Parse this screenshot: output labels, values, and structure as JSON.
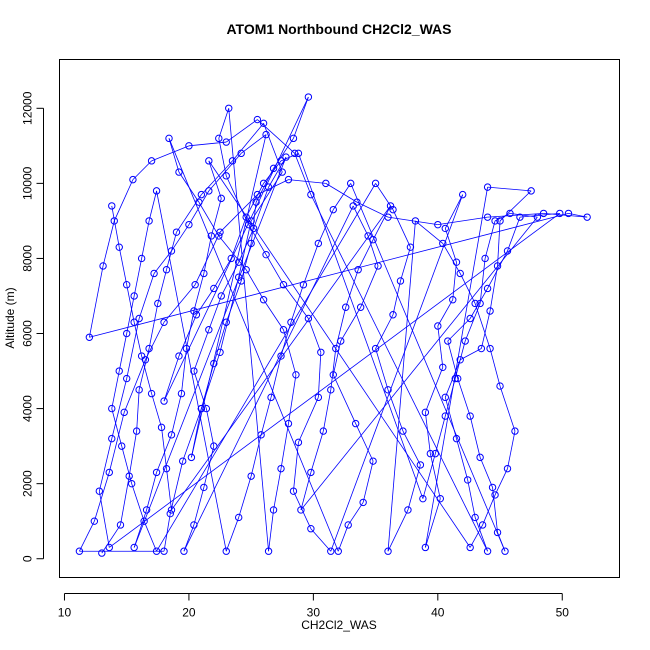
{
  "chart_data": {
    "type": "scatter",
    "title": "ATOM1 Northbound CH2Cl2_WAS",
    "xlabel": "CH2Cl2_WAS",
    "ylabel": "Altitude (m)",
    "xlim": [
      9.6,
      54.6
    ],
    "ylim": [
      -500,
      13300
    ],
    "xticks": [
      10,
      20,
      30,
      40,
      50
    ],
    "yticks": [
      0,
      2000,
      4000,
      6000,
      8000,
      10000,
      12000
    ],
    "color": "#0000ff",
    "marker": "open-circle",
    "connected": true,
    "grid": false,
    "legend": "none",
    "series": [
      {
        "points": [
          [
            13.0,
            150
          ],
          [
            14.5,
            900
          ],
          [
            15.2,
            2200
          ],
          [
            15.8,
            3400
          ],
          [
            16.0,
            4500
          ],
          [
            16.8,
            5600
          ],
          [
            17.5,
            6800
          ],
          [
            18.2,
            7700
          ],
          [
            19.0,
            8700
          ],
          [
            21.0,
            9700
          ],
          [
            23.5,
            10600
          ],
          [
            26.0,
            11600
          ],
          [
            27.5,
            10300
          ],
          [
            25.0,
            9000
          ],
          [
            24.0,
            7500
          ],
          [
            22.5,
            5500
          ],
          [
            21.0,
            4000
          ],
          [
            19.5,
            2600
          ],
          [
            18.5,
            1200
          ],
          [
            18.0,
            200
          ],
          [
            11.2,
            200
          ],
          [
            12.4,
            1000
          ],
          [
            13.6,
            2300
          ],
          [
            14.8,
            3900
          ],
          [
            16.5,
            5300
          ],
          [
            18.0,
            6300
          ],
          [
            20.5,
            7300
          ],
          [
            22.5,
            8700
          ],
          [
            25.5,
            9700
          ],
          [
            28.0,
            10100
          ],
          [
            31.0,
            10000
          ],
          [
            33.5,
            9500
          ],
          [
            36.0,
            9100
          ],
          [
            40.0,
            8900
          ],
          [
            44.0,
            9100
          ],
          [
            48.5,
            9200
          ],
          [
            52.0,
            9100
          ],
          [
            50.5,
            9200
          ],
          [
            12.0,
            5900
          ],
          [
            13.1,
            7800
          ],
          [
            14.0,
            9000
          ],
          [
            15.5,
            10100
          ],
          [
            17.0,
            10600
          ],
          [
            20.0,
            11000
          ],
          [
            23.0,
            11100
          ],
          [
            25.5,
            11700
          ],
          [
            28.5,
            10800
          ],
          [
            29.8,
            9700
          ],
          [
            44.0,
            200
          ],
          [
            43.0,
            1100
          ],
          [
            42.4,
            2100
          ],
          [
            41.5,
            3200
          ],
          [
            40.6,
            4300
          ],
          [
            41.8,
            5300
          ],
          [
            43.5,
            5600
          ],
          [
            44.2,
            6600
          ],
          [
            44.8,
            7800
          ],
          [
            45.0,
            9000
          ],
          [
            47.5,
            9800
          ],
          [
            44.0,
            9900
          ],
          [
            39.0,
            300
          ],
          [
            40.2,
            1600
          ],
          [
            39.4,
            2800
          ],
          [
            39.0,
            3900
          ],
          [
            40.4,
            5100
          ],
          [
            40.0,
            6200
          ],
          [
            41.2,
            6900
          ],
          [
            41.5,
            7900
          ],
          [
            40.6,
            8800
          ],
          [
            42.0,
            9700
          ],
          [
            31.4,
            200
          ],
          [
            29.8,
            800
          ],
          [
            28.4,
            1800
          ],
          [
            28.8,
            3100
          ],
          [
            30.4,
            4300
          ],
          [
            30.6,
            5500
          ],
          [
            29.6,
            6400
          ],
          [
            27.6,
            7300
          ],
          [
            26.2,
            8100
          ],
          [
            24.8,
            8900
          ],
          [
            23.0,
            10200
          ],
          [
            22.4,
            11200
          ],
          [
            23.2,
            12000
          ],
          [
            26.4,
            200
          ],
          [
            26.8,
            1300
          ],
          [
            27.4,
            2400
          ],
          [
            28.0,
            3600
          ],
          [
            28.6,
            4900
          ],
          [
            27.6,
            6100
          ],
          [
            26.0,
            6900
          ],
          [
            24.6,
            7700
          ],
          [
            22.4,
            8600
          ],
          [
            20.8,
            9500
          ],
          [
            19.2,
            10300
          ],
          [
            18.4,
            11200
          ],
          [
            32.0,
            200
          ],
          [
            32.8,
            900
          ],
          [
            34.0,
            1500
          ],
          [
            34.8,
            2600
          ],
          [
            33.4,
            3600
          ],
          [
            31.6,
            4900
          ],
          [
            32.2,
            5800
          ],
          [
            33.8,
            6700
          ],
          [
            35.2,
            7800
          ],
          [
            34.4,
            8600
          ],
          [
            33.2,
            9400
          ],
          [
            19.6,
            200
          ],
          [
            20.4,
            900
          ],
          [
            21.2,
            1900
          ],
          [
            22.0,
            3000
          ],
          [
            21.4,
            4000
          ],
          [
            20.4,
            5000
          ],
          [
            21.6,
            6100
          ],
          [
            22.6,
            7000
          ],
          [
            24.0,
            7900
          ],
          [
            25.2,
            8800
          ],
          [
            26.4,
            9900
          ],
          [
            27.8,
            10700
          ],
          [
            15.6,
            300
          ],
          [
            16.6,
            1300
          ],
          [
            17.4,
            2300
          ],
          [
            18.6,
            3300
          ],
          [
            19.4,
            4400
          ],
          [
            19.8,
            5600
          ],
          [
            20.4,
            6600
          ],
          [
            21.2,
            7600
          ],
          [
            21.8,
            8600
          ],
          [
            22.6,
            9600
          ],
          [
            21.6,
            10600
          ],
          [
            42.6,
            300
          ],
          [
            43.6,
            900
          ],
          [
            44.6,
            1700
          ],
          [
            45.6,
            2400
          ],
          [
            46.2,
            3400
          ],
          [
            45.0,
            4600
          ],
          [
            44.2,
            5600
          ],
          [
            43.0,
            6800
          ],
          [
            41.8,
            7600
          ],
          [
            40.4,
            8400
          ],
          [
            38.2,
            9000
          ],
          [
            36.0,
            200
          ],
          [
            37.6,
            1300
          ],
          [
            38.6,
            2500
          ],
          [
            37.2,
            3400
          ],
          [
            36.0,
            4500
          ],
          [
            35.0,
            5600
          ],
          [
            36.4,
            6500
          ],
          [
            37.0,
            7400
          ],
          [
            37.8,
            8300
          ],
          [
            36.4,
            9300
          ],
          [
            35.0,
            10000
          ],
          [
            17.4,
            200
          ],
          [
            16.4,
            1000
          ],
          [
            15.4,
            2000
          ],
          [
            14.6,
            3000
          ],
          [
            13.8,
            4000
          ],
          [
            14.4,
            5000
          ],
          [
            15.0,
            6000
          ],
          [
            15.6,
            7000
          ],
          [
            16.2,
            8000
          ],
          [
            16.8,
            9000
          ],
          [
            17.4,
            9800
          ],
          [
            23.0,
            200
          ],
          [
            24.0,
            1100
          ],
          [
            25.0,
            2200
          ],
          [
            25.8,
            3300
          ],
          [
            26.6,
            4300
          ],
          [
            27.4,
            5400
          ],
          [
            28.2,
            6300
          ],
          [
            29.2,
            7300
          ],
          [
            30.4,
            8400
          ],
          [
            31.6,
            9300
          ],
          [
            33.0,
            10000
          ],
          [
            45.4,
            200
          ],
          [
            44.8,
            700
          ],
          [
            44.4,
            1900
          ],
          [
            43.4,
            2700
          ],
          [
            42.6,
            3800
          ],
          [
            41.6,
            4800
          ],
          [
            40.8,
            5800
          ],
          [
            42.6,
            6400
          ],
          [
            44.0,
            7200
          ],
          [
            45.6,
            8200
          ],
          [
            46.6,
            9100
          ],
          [
            49.8,
            9200
          ],
          [
            13.6,
            300
          ],
          [
            12.8,
            1800
          ],
          [
            13.8,
            3200
          ],
          [
            15.0,
            4800
          ],
          [
            16.0,
            6400
          ],
          [
            17.2,
            7600
          ],
          [
            18.6,
            8200
          ],
          [
            20.0,
            8900
          ],
          [
            21.6,
            9800
          ],
          [
            24.2,
            10800
          ],
          [
            26.2,
            11300
          ],
          [
            20.2,
            2700
          ],
          [
            21.0,
            4000
          ],
          [
            22.0,
            5200
          ],
          [
            23.0,
            6300
          ],
          [
            24.2,
            7400
          ],
          [
            25.0,
            8400
          ],
          [
            25.4,
            9500
          ],
          [
            26.8,
            10400
          ],
          [
            28.4,
            11200
          ],
          [
            29.6,
            12300
          ],
          [
            18.0,
            4200
          ],
          [
            19.2,
            5400
          ],
          [
            20.6,
            6500
          ],
          [
            22.0,
            7200
          ],
          [
            23.4,
            8000
          ],
          [
            24.6,
            9100
          ],
          [
            26.0,
            10000
          ],
          [
            27.4,
            10600
          ],
          [
            28.8,
            10800
          ],
          [
            38.8,
            1600
          ],
          [
            39.8,
            2800
          ],
          [
            40.6,
            3800
          ],
          [
            41.4,
            4800
          ],
          [
            42.2,
            5800
          ],
          [
            43.4,
            6800
          ],
          [
            43.8,
            8000
          ],
          [
            44.6,
            9000
          ],
          [
            45.8,
            9200
          ],
          [
            48.0,
            9100
          ],
          [
            29.0,
            1300
          ],
          [
            29.8,
            2300
          ],
          [
            30.8,
            3400
          ],
          [
            31.4,
            4500
          ],
          [
            31.8,
            5600
          ],
          [
            32.6,
            6700
          ],
          [
            33.6,
            7700
          ],
          [
            34.8,
            8500
          ],
          [
            36.2,
            9400
          ],
          [
            18.6,
            1300
          ],
          [
            18.2,
            2400
          ],
          [
            17.8,
            3500
          ],
          [
            17.0,
            4400
          ],
          [
            16.2,
            5400
          ],
          [
            15.6,
            6300
          ],
          [
            15.0,
            7300
          ],
          [
            14.4,
            8300
          ],
          [
            13.8,
            9400
          ]
        ]
      }
    ]
  }
}
